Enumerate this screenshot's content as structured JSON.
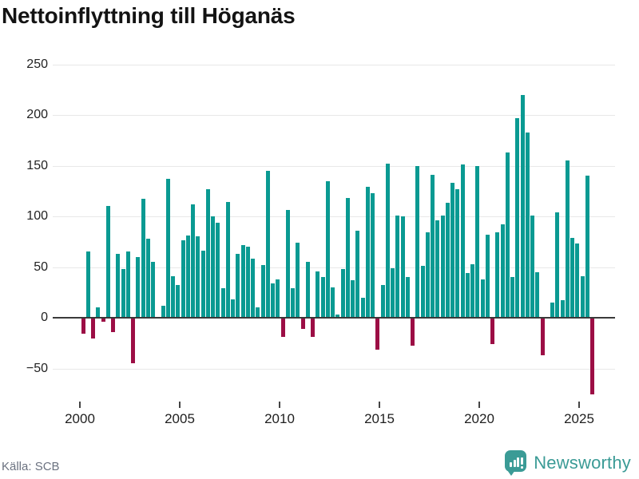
{
  "header": {
    "title": "Nettoinflyttning till Höganäs"
  },
  "footer": {
    "source": "Källa: SCB",
    "brand": "Newsworthy"
  },
  "colors": {
    "positive_bar": "#0a9a92",
    "negative_bar": "#9c0e45",
    "grid": "#e8e8e8",
    "zero_line": "#3a3a3a",
    "brand_teal": "#3b9b96"
  },
  "chart_data": {
    "type": "bar",
    "title": "Nettoinflyttning till Höganäs",
    "xlabel": "",
    "ylabel": "",
    "x_unit": "quarter",
    "start_period": "2000Q1",
    "end_period": "2025Q3",
    "ylim": [
      -75,
      250
    ],
    "grid": true,
    "y_ticks": {
      "labels": [
        "250",
        "200",
        "150",
        "100",
        "50",
        "0",
        "−50"
      ],
      "values": [
        250,
        200,
        150,
        100,
        50,
        0,
        -50
      ]
    },
    "x_ticks": {
      "labels": [
        "2000",
        "2005",
        "2010",
        "2015",
        "2020",
        "2025"
      ],
      "years": [
        2000,
        2005,
        2010,
        2015,
        2020,
        2025
      ]
    },
    "values": [
      -15,
      65,
      -20,
      10,
      -3,
      110,
      -13,
      63,
      48,
      65,
      -44,
      60,
      117,
      78,
      55,
      0,
      12,
      137,
      41,
      32,
      76,
      81,
      112,
      80,
      66,
      127,
      100,
      94,
      29,
      114,
      18,
      63,
      72,
      70,
      58,
      10,
      52,
      145,
      34,
      38,
      -18,
      106,
      29,
      74,
      -10,
      55,
      -18,
      46,
      40,
      135,
      30,
      3,
      48,
      118,
      37,
      86,
      20,
      129,
      123,
      -31,
      32,
      152,
      49,
      101,
      100,
      40,
      -27,
      150,
      51,
      84,
      141,
      96,
      101,
      113,
      133,
      127,
      151,
      44,
      53,
      150,
      38,
      82,
      -25,
      84,
      92,
      163,
      40,
      197,
      220,
      183,
      101,
      45,
      -36,
      0,
      15,
      104,
      17,
      155,
      79,
      73,
      41,
      140,
      -75
    ]
  }
}
